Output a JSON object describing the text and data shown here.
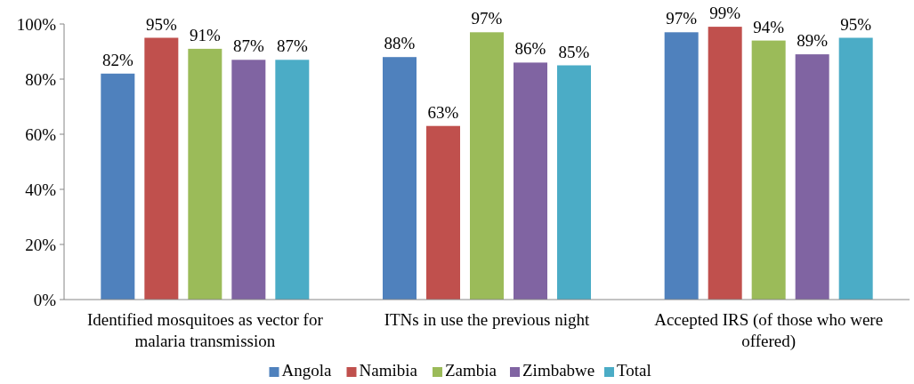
{
  "chart_data": {
    "type": "bar",
    "categories": [
      "Identified mosquitoes as vector for malaria transmission",
      "ITNs in use the previous night",
      "Accepted IRS (of those who were offered)"
    ],
    "series": [
      {
        "name": "Angola",
        "color": "#4f81bd",
        "values": [
          82,
          88,
          97
        ],
        "value_labels": [
          "82%",
          "88%",
          "97%"
        ]
      },
      {
        "name": "Namibia",
        "color": "#c0504d",
        "values": [
          95,
          63,
          99
        ],
        "value_labels": [
          "95%",
          "63%",
          "99%"
        ]
      },
      {
        "name": "Zambia",
        "color": "#9bbb59",
        "values": [
          91,
          97,
          94
        ],
        "value_labels": [
          "91%",
          "97%",
          "94%"
        ]
      },
      {
        "name": "Zimbabwe",
        "color": "#8064a2",
        "values": [
          87,
          86,
          89
        ],
        "value_labels": [
          "87%",
          "86%",
          "89%"
        ]
      },
      {
        "name": "Total",
        "color": "#4bacc6",
        "values": [
          87,
          85,
          95
        ],
        "value_labels": [
          "87%",
          "85%",
          "95%"
        ]
      }
    ],
    "ylim": [
      0,
      100
    ],
    "yticks": [
      {
        "value": 0,
        "label": "0%"
      },
      {
        "value": 20,
        "label": "20%"
      },
      {
        "value": 40,
        "label": "40%"
      },
      {
        "value": 60,
        "label": "60%"
      },
      {
        "value": 80,
        "label": "80%"
      },
      {
        "value": 100,
        "label": "100%"
      }
    ],
    "legend": "bottom",
    "grid": false
  }
}
